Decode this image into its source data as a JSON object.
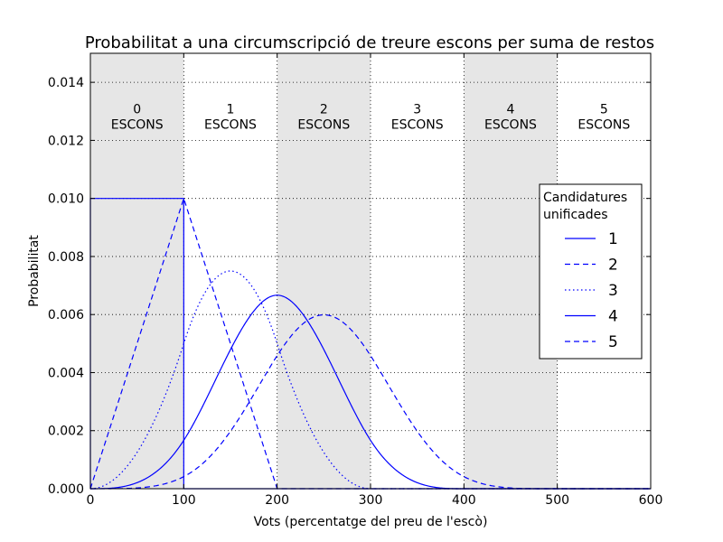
{
  "chart_data": {
    "type": "line",
    "title": "Probabilitat a una circumscripció de treure escons per suma de restos",
    "xlabel": "Vots (percentatge del preu de l'escò)",
    "ylabel": "Probabilitat",
    "xlim": [
      0,
      600
    ],
    "ylim": [
      0,
      0.015
    ],
    "x_ticks": [
      0,
      100,
      200,
      300,
      400,
      500,
      600
    ],
    "x_tick_labels": [
      "0",
      "100",
      "200",
      "300",
      "400",
      "500",
      "600"
    ],
    "y_ticks": [
      0,
      0.002,
      0.004,
      0.006,
      0.008,
      0.01,
      0.012,
      0.014
    ],
    "y_tick_labels": [
      "0.000",
      "0.002",
      "0.004",
      "0.006",
      "0.008",
      "0.010",
      "0.012",
      "0.014"
    ],
    "grid": true,
    "bands": [
      {
        "x0": 0,
        "x1": 100,
        "shaded": true,
        "label_num": "0",
        "label_word": "ESCONS"
      },
      {
        "x0": 100,
        "x1": 200,
        "shaded": false,
        "label_num": "1",
        "label_word": "ESCONS"
      },
      {
        "x0": 200,
        "x1": 300,
        "shaded": true,
        "label_num": "2",
        "label_word": "ESCONS"
      },
      {
        "x0": 300,
        "x1": 400,
        "shaded": false,
        "label_num": "3",
        "label_word": "ESCONS"
      },
      {
        "x0": 400,
        "x1": 500,
        "shaded": true,
        "label_num": "4",
        "label_word": "ESCONS"
      },
      {
        "x0": 500,
        "x1": 600,
        "shaded": false,
        "label_num": "5",
        "label_word": "ESCONS"
      }
    ],
    "band_label_y": 0.0125,
    "legend": {
      "title_lines": [
        "Candidatures",
        "unificades"
      ],
      "placement": "right"
    },
    "series": [
      {
        "name": "1",
        "style": "solid",
        "n": 1
      },
      {
        "name": "2",
        "style": "dashed",
        "n": 2
      },
      {
        "name": "3",
        "style": "dotted",
        "n": 3
      },
      {
        "name": "4",
        "style": "solid",
        "n": 4
      },
      {
        "name": "5",
        "style": "dashed",
        "n": 5
      }
    ],
    "colors": {
      "line": "#0000ff",
      "band": "#e6e6e6",
      "grid": "#000000"
    }
  }
}
